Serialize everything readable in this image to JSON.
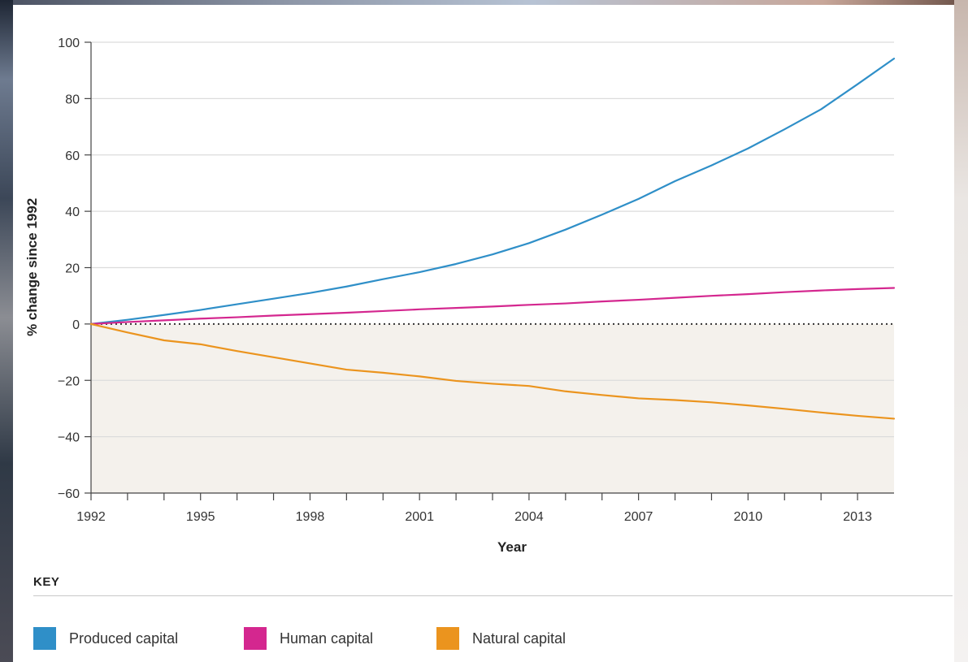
{
  "chart_data": {
    "type": "line",
    "xlabel": "Year",
    "ylabel": "% change since 1992",
    "ylim": [
      -60,
      100
    ],
    "xlim": [
      1992,
      2014
    ],
    "yticks": [
      100,
      80,
      60,
      40,
      20,
      0,
      -20,
      -40,
      -60
    ],
    "ytick_labels": [
      "100",
      "80",
      "60",
      "40",
      "20",
      "0",
      "−20",
      "−40",
      "−60"
    ],
    "xticks": [
      1992,
      1995,
      1998,
      2001,
      2004,
      2007,
      2010,
      2013
    ],
    "xtick_labels": [
      "1992",
      "1995",
      "1998",
      "2001",
      "2004",
      "2007",
      "2010",
      "2013"
    ],
    "grid": true,
    "negative_region_shaded": true,
    "x": [
      1992,
      1993,
      1994,
      1995,
      1996,
      1997,
      1998,
      1999,
      2000,
      2001,
      2002,
      2003,
      2004,
      2005,
      2006,
      2007,
      2008,
      2009,
      2010,
      2011,
      2012,
      2013,
      2014
    ],
    "series": [
      {
        "name": "Produced capital",
        "color": "#2f8fc8",
        "values": [
          0,
          1.5,
          3.2,
          5.0,
          7.0,
          9.0,
          11.0,
          13.3,
          15.9,
          18.4,
          21.3,
          24.7,
          28.7,
          33.5,
          38.8,
          44.4,
          50.7,
          56.3,
          62.3,
          69.1,
          76.2,
          85.1,
          94.2
        ]
      },
      {
        "name": "Human capital",
        "color": "#d4278f",
        "values": [
          0,
          0.7,
          1.3,
          1.9,
          2.4,
          3.0,
          3.5,
          4.0,
          4.6,
          5.2,
          5.7,
          6.2,
          6.8,
          7.3,
          8.0,
          8.6,
          9.3,
          10.0,
          10.6,
          11.3,
          11.9,
          12.4,
          12.8
        ]
      },
      {
        "name": "Natural capital",
        "color": "#eb941e",
        "values": [
          0,
          -3.0,
          -5.8,
          -7.2,
          -9.6,
          -11.8,
          -14.0,
          -16.2,
          -17.3,
          -18.6,
          -20.2,
          -21.2,
          -22.0,
          -23.9,
          -25.2,
          -26.4,
          -27.0,
          -27.8,
          -28.9,
          -30.1,
          -31.4,
          -32.6,
          -33.6
        ]
      }
    ]
  },
  "key": {
    "title": "KEY",
    "items": [
      {
        "label": "Produced capital",
        "color": "#2f8fc8"
      },
      {
        "label": "Human capital",
        "color": "#d4278f"
      },
      {
        "label": "Natural capital",
        "color": "#eb941e"
      }
    ]
  }
}
